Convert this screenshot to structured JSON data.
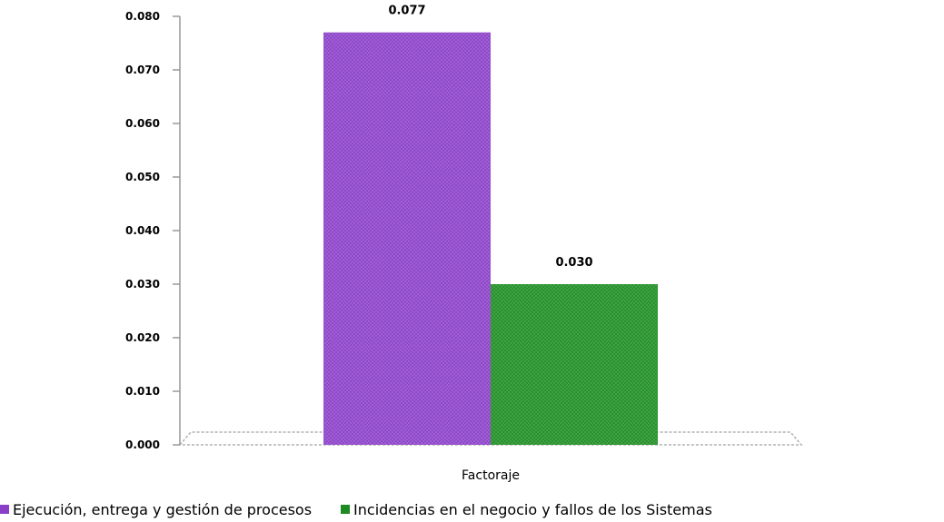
{
  "chart_data": {
    "type": "bar",
    "categories": [
      "Factoraje"
    ],
    "series": [
      {
        "name": "Ejecución, entrega y gestión de procesos",
        "values": [
          0.077
        ],
        "color": "#8a3fc8"
      },
      {
        "name": "Incidencias en el negocio y fallos de los Sistemas",
        "values": [
          0.03
        ],
        "color": "#1c8c22"
      }
    ],
    "data_labels": [
      "0.077",
      "0.030"
    ],
    "yticks": [
      "0.000",
      "0.010",
      "0.020",
      "0.030",
      "0.040",
      "0.050",
      "0.060",
      "0.070",
      "0.080"
    ],
    "ylim": [
      0,
      0.08
    ],
    "title": "",
    "xlabel": "",
    "ylabel": "",
    "legend_position": "bottom",
    "grid": false
  }
}
